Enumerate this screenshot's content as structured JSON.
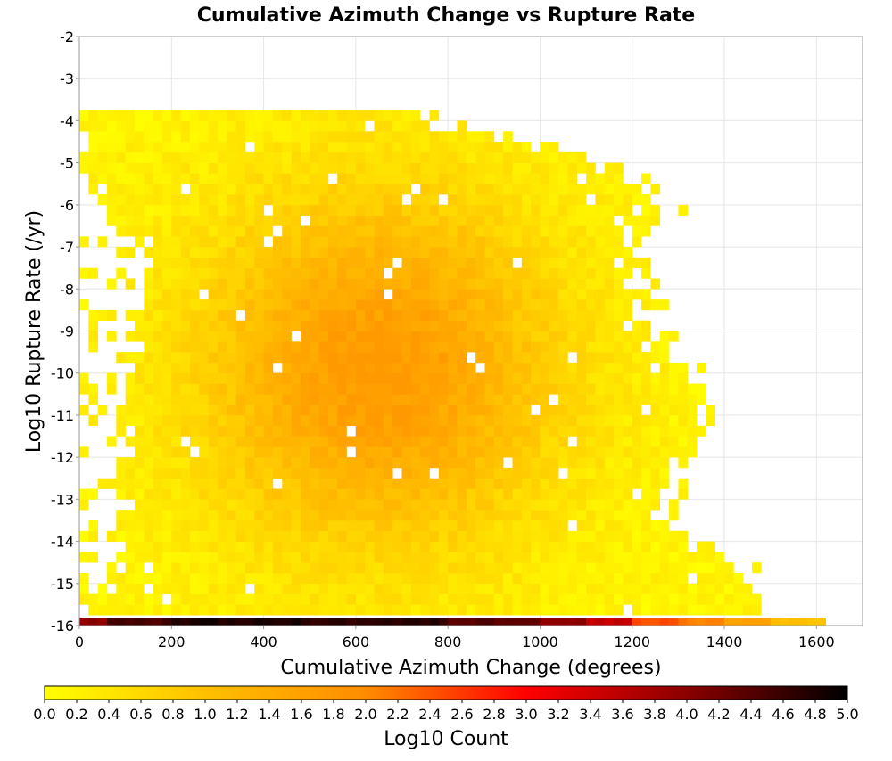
{
  "chart_data": {
    "type": "heatmap",
    "title": "Cumulative Azimuth Change vs Rupture Rate",
    "xlabel": "Cumulative Azimuth Change (degrees)",
    "ylabel": "Log10 Rupture Rate (/yr)",
    "xlim": [
      0,
      1700
    ],
    "ylim": [
      -16,
      -2
    ],
    "x_ticks": [
      "0",
      "200",
      "400",
      "600",
      "800",
      "1000",
      "1200",
      "1400",
      "1600"
    ],
    "y_ticks": [
      "-2",
      "-3",
      "-4",
      "-5",
      "-6",
      "-7",
      "-8",
      "-9",
      "-10",
      "-11",
      "-12",
      "-13",
      "-14",
      "-15",
      "-16"
    ],
    "grid": true,
    "colorbar": {
      "label": "Log10 Count",
      "range": [
        0.0,
        5.0
      ],
      "ticks": [
        "0.0",
        "0.2",
        "0.4",
        "0.6",
        "0.8",
        "1.0",
        "1.2",
        "1.4",
        "1.6",
        "1.8",
        "2.0",
        "2.2",
        "2.4",
        "2.6",
        "2.8",
        "3.0",
        "3.2",
        "3.4",
        "3.6",
        "3.8",
        "4.0",
        "4.2",
        "4.4",
        "4.6",
        "4.8",
        "5.0"
      ],
      "colors": [
        "#ffff00",
        "#ffc000",
        "#ff8c00",
        "#ff0000",
        "#8b0000",
        "#000000"
      ],
      "placement": "bottom"
    },
    "bins": {
      "x_width": 20,
      "y_height": 0.25,
      "x_extent_max": 1620
    },
    "floor_row_values": [
      [
        0,
        60,
        4.0
      ],
      [
        60,
        200,
        4.5
      ],
      [
        200,
        500,
        4.8
      ],
      [
        500,
        800,
        4.7
      ],
      [
        800,
        1000,
        4.4
      ],
      [
        1000,
        1100,
        4.0
      ],
      [
        1100,
        1200,
        3.5
      ],
      [
        1200,
        1300,
        2.5
      ],
      [
        1300,
        1400,
        2.1
      ],
      [
        1400,
        1500,
        1.6
      ],
      [
        1500,
        1620,
        1.0
      ]
    ],
    "density_envelope": [
      [
        -4,
        0,
        740
      ],
      [
        -5,
        0,
        1160
      ],
      [
        -6,
        40,
        1280
      ],
      [
        -7,
        120,
        1200
      ],
      [
        -8,
        120,
        1230
      ],
      [
        -9,
        100,
        1240
      ],
      [
        -10,
        80,
        1320
      ],
      [
        -11,
        80,
        1380
      ],
      [
        -12,
        80,
        1340
      ],
      [
        -13,
        60,
        1250
      ],
      [
        -14,
        60,
        1340
      ],
      [
        -15,
        40,
        1480
      ],
      [
        -16,
        0,
        1480
      ]
    ],
    "peak": {
      "x": 650,
      "y": -10,
      "value": 1.6
    }
  }
}
